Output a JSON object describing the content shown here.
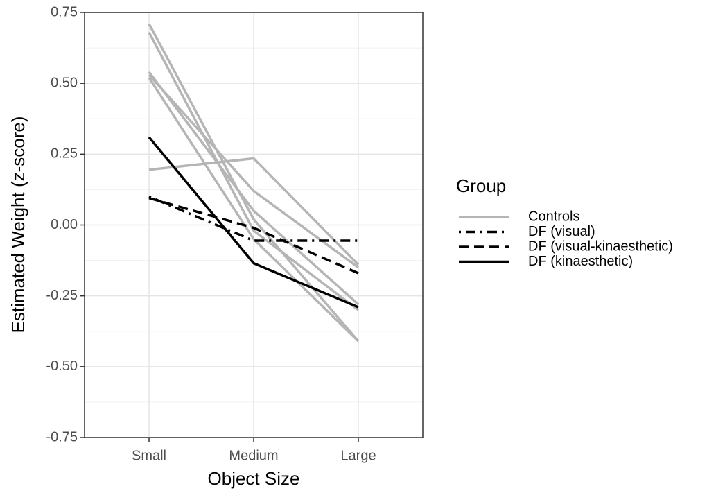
{
  "chart_data": {
    "type": "line",
    "x_label": "Object Size",
    "y_label": "Estimated Weight (z-score)",
    "categories": [
      "Small",
      "Medium",
      "Large"
    ],
    "ylim": [
      -0.75,
      0.75
    ],
    "yticks": [
      0.75,
      {
        "value": 0.5,
        "label": "0.50"
      },
      0.25,
      {
        "value": 0,
        "label": "0.00"
      },
      -0.25,
      {
        "value": -0.5,
        "label": "-0.50"
      },
      -0.75
    ],
    "grid": true,
    "reference_line": 0,
    "legend_title": "Group",
    "legend_position": "right",
    "series": [
      {
        "name": "Controls",
        "color": "#b5b5b5",
        "dash": "solid",
        "values": [
          [
            0.71,
            0.02,
            -0.41
          ],
          [
            0.68,
            -0.02,
            -0.3
          ],
          [
            0.54,
            0.05,
            -0.28
          ],
          [
            0.53,
            0.12,
            -0.15
          ],
          [
            0.52,
            -0.05,
            -0.41
          ],
          [
            0.195,
            0.235,
            -0.14
          ]
        ]
      },
      {
        "name": "DF (visual)",
        "color": "#000000",
        "dash": "dotdash",
        "values": [
          0.1,
          -0.055,
          -0.055
        ]
      },
      {
        "name": "DF (visual-kinaesthetic)",
        "color": "#000000",
        "dash": "dashed",
        "values": [
          0.095,
          -0.01,
          -0.17
        ]
      },
      {
        "name": "DF (kinaesthetic)",
        "color": "#000000",
        "dash": "solid",
        "values": [
          0.31,
          -0.135,
          -0.29
        ]
      }
    ]
  }
}
